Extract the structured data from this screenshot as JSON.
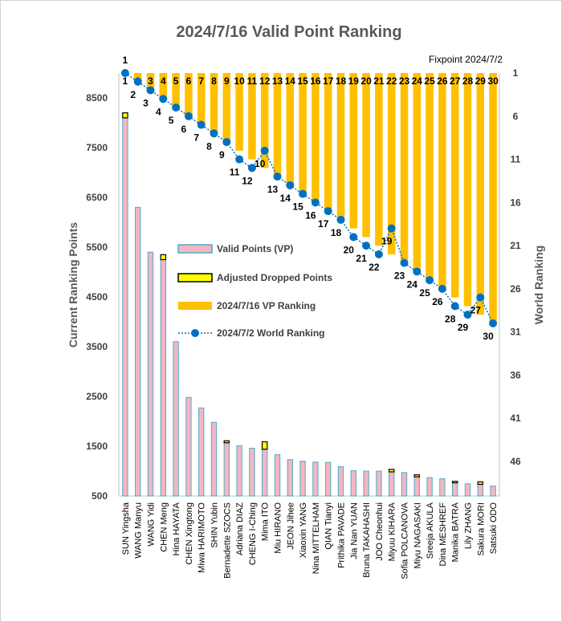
{
  "chart_data": {
    "type": "bar",
    "title": "2024/7/16 Valid Point Ranking",
    "subtitle": "Fixpoint 2024/7/2",
    "ylabel": "Current Ranking Points",
    "y2label": "World Ranking",
    "ylim": [
      500,
      9000
    ],
    "yticks": [
      500,
      1500,
      2500,
      3500,
      4500,
      5500,
      6500,
      7500,
      8500
    ],
    "y2lim": [
      1,
      50
    ],
    "y2ticks": [
      1,
      6,
      11,
      16,
      21,
      26,
      31,
      36,
      41,
      46
    ],
    "categories": [
      "SUN Yingsha",
      "WANG Manyu",
      "WANG Yidi",
      "CHEN Meng",
      "Hina HAYATA",
      "CHEN Xingtong",
      "Miwa HARIMOTO",
      "SHIN Yubin",
      "Bernadette SZOCS",
      "Adriana DIAZ",
      "CHENG I-Ching",
      "Mima ITO",
      "Miu HIRANO",
      "JEON Jihee",
      "Xiaoxin YANG",
      "Nina MITTELHAM",
      "QIAN Tianyi",
      "Prithika PAVADE",
      "Jia Nan YUAN",
      "Bruna TAKAHASHI",
      "JOO Cheonhui",
      "Miyuu KIHARA",
      "Sofia POLCANOVA",
      "Miyu NAGASAKI",
      "Sreeja AKULA",
      "Dina MESHREF",
      "Manika BATRA",
      "Lily ZHANG",
      "Sakura MORI",
      "Satsuki ODO"
    ],
    "series": [
      {
        "name": "Valid Points (VP)",
        "axis": "left",
        "style": "bar",
        "values": [
          8100,
          6300,
          5400,
          5250,
          3600,
          2480,
          2270,
          1980,
          1570,
          1510,
          1460,
          1440,
          1330,
          1230,
          1200,
          1180,
          1175,
          1090,
          1010,
          1000,
          1000,
          985,
          970,
          885,
          870,
          845,
          765,
          745,
          735,
          700
        ]
      },
      {
        "name": "Adjusted Dropped Points",
        "axis": "left",
        "style": "stacked-bar",
        "values": [
          100,
          0,
          0,
          100,
          0,
          0,
          0,
          0,
          40,
          0,
          0,
          150,
          0,
          0,
          0,
          0,
          0,
          0,
          0,
          0,
          0,
          50,
          0,
          40,
          0,
          0,
          30,
          0,
          50,
          0
        ]
      },
      {
        "name": "2024/7/16 VP Ranking",
        "axis": "right",
        "style": "bar-from-top",
        "values": [
          1,
          2,
          3,
          4,
          5,
          6,
          7,
          8,
          9,
          10,
          11,
          12,
          13,
          14,
          15,
          16,
          17,
          18,
          19,
          20,
          21,
          22,
          23,
          24,
          25,
          26,
          27,
          28,
          29,
          30
        ]
      },
      {
        "name": "2024/7/2 World Ranking",
        "axis": "right",
        "style": "dotted-line-markers",
        "values": [
          1,
          2,
          3,
          4,
          5,
          6,
          7,
          8,
          9,
          11,
          12,
          10,
          13,
          14,
          15,
          16,
          17,
          18,
          20,
          21,
          22,
          19,
          23,
          24,
          25,
          26,
          28,
          29,
          27,
          30
        ]
      }
    ],
    "colors": {
      "vp_fill": "#f4b6c2",
      "vp_edge": "#4bacc6",
      "dropped_fill": "#ffff00",
      "dropped_edge": "#000000",
      "rank_bar": "#ffc000",
      "world_line": "#0070c0"
    },
    "legend_position": "center-left"
  }
}
